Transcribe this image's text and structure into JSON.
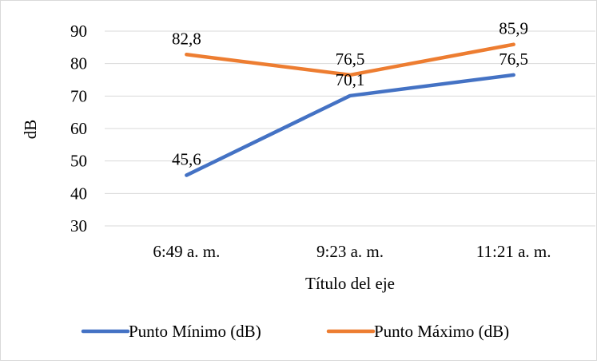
{
  "chart_data": {
    "type": "line",
    "categories": [
      "6:49 a. m.",
      "9:23 a. m.",
      "11:21 a. m."
    ],
    "series": [
      {
        "name": "Punto Mínimo (dB)",
        "values": [
          45.6,
          70.1,
          76.5
        ],
        "data_labels": [
          "45,6",
          "70,1",
          "76,5"
        ],
        "color": "#4472C4"
      },
      {
        "name": "Punto Máximo (dB)",
        "values": [
          82.8,
          76.5,
          85.9
        ],
        "data_labels": [
          "82,8",
          "76,5",
          "85,9"
        ],
        "color": "#ED7D31"
      }
    ],
    "ylim": [
      30,
      90
    ],
    "yticks": [
      "30",
      "40",
      "50",
      "60",
      "70",
      "80",
      "90"
    ],
    "xlabel": "Título del eje",
    "ylabel": "dB",
    "grid": true,
    "legend_position": "bottom",
    "gridline_color": "#d9d9d9"
  }
}
